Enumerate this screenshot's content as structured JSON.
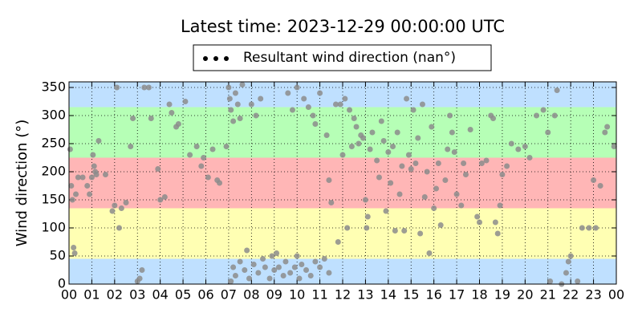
{
  "chart_data": {
    "type": "scatter",
    "title": "Latest time: 2023-12-29 00:00:00 UTC",
    "y_label": "Wind direction (°)",
    "legend_position": "upper center",
    "legend_marker_color": "#000000",
    "grid": true,
    "xlim": [
      0,
      24
    ],
    "ylim": [
      0,
      360
    ],
    "xticks": [
      {
        "value": 0,
        "label": "00"
      },
      {
        "value": 1,
        "label": "01"
      },
      {
        "value": 2,
        "label": "02"
      },
      {
        "value": 3,
        "label": "03"
      },
      {
        "value": 4,
        "label": "04"
      },
      {
        "value": 5,
        "label": "05"
      },
      {
        "value": 6,
        "label": "06"
      },
      {
        "value": 7,
        "label": "07"
      },
      {
        "value": 8,
        "label": "08"
      },
      {
        "value": 9,
        "label": "09"
      },
      {
        "value": 10,
        "label": "10"
      },
      {
        "value": 11,
        "label": "11"
      },
      {
        "value": 12,
        "label": "12"
      },
      {
        "value": 13,
        "label": "13"
      },
      {
        "value": 14,
        "label": "14"
      },
      {
        "value": 15,
        "label": "15"
      },
      {
        "value": 16,
        "label": "16"
      },
      {
        "value": 17,
        "label": "17"
      },
      {
        "value": 18,
        "label": "18"
      },
      {
        "value": 19,
        "label": "19"
      },
      {
        "value": 20,
        "label": "20"
      },
      {
        "value": 21,
        "label": "21"
      },
      {
        "value": 22,
        "label": "22"
      },
      {
        "value": 23,
        "label": "23"
      },
      {
        "value": 24,
        "label": "00"
      }
    ],
    "yticks": [
      0,
      50,
      100,
      150,
      200,
      250,
      300,
      350
    ],
    "bands": [
      {
        "from": 0,
        "to": 45,
        "color": "#bfe0ff"
      },
      {
        "from": 45,
        "to": 135,
        "color": "#ffffb3"
      },
      {
        "from": 135,
        "to": 225,
        "color": "#ffb6b6"
      },
      {
        "from": 225,
        "to": 315,
        "color": "#b6ffb6"
      },
      {
        "from": 315,
        "to": 360,
        "color": "#bfe0ff"
      }
    ],
    "series": [
      {
        "name": "Resultant wind direction (nan°)",
        "color": "#8c8c8c",
        "x": [
          0.05,
          0.1,
          0.15,
          0.2,
          0.25,
          0.3,
          0.4,
          0.6,
          0.8,
          0.9,
          1.0,
          1.05,
          1.1,
          1.15,
          1.2,
          1.3,
          1.6,
          1.9,
          2.0,
          2.1,
          2.2,
          2.3,
          2.5,
          2.7,
          2.8,
          3.0,
          3.1,
          3.2,
          3.3,
          3.5,
          3.6,
          3.9,
          4.0,
          4.2,
          4.4,
          4.5,
          4.7,
          4.8,
          5.1,
          5.3,
          5.6,
          5.8,
          5.9,
          6.1,
          6.3,
          6.5,
          6.6,
          6.9,
          7.0,
          7.05,
          7.1,
          7.2,
          7.3,
          7.4,
          7.5,
          7.6,
          7.1,
          7.2,
          7.3,
          7.5,
          7.7,
          7.8,
          7.9,
          8.1,
          8.3,
          8.5,
          8.6,
          8.8,
          8.9,
          9.0,
          9.1,
          9.2,
          9.4,
          9.5,
          9.7,
          9.9,
          10.0,
          10.1,
          10.2,
          10.4,
          10.6,
          10.8,
          11.0,
          11.2,
          11.4,
          8.0,
          8.4,
          8.2,
          9.6,
          9.8,
          10.0,
          10.3,
          10.5,
          10.7,
          10.8,
          11.0,
          11.3,
          11.4,
          11.5,
          11.7,
          11.8,
          11.9,
          12.0,
          12.1,
          12.2,
          12.3,
          12.4,
          12.5,
          12.6,
          12.7,
          12.8,
          12.9,
          13.0,
          13.05,
          13.1,
          13.2,
          13.3,
          13.5,
          13.6,
          13.7,
          13.8,
          13.9,
          14.0,
          14.1,
          14.2,
          14.3,
          14.4,
          14.5,
          14.6,
          14.7,
          14.8,
          14.9,
          15.0,
          15.1,
          15.2,
          15.3,
          15.4,
          15.5,
          15.6,
          15.7,
          15.8,
          15.9,
          16.0,
          16.1,
          16.2,
          16.3,
          16.5,
          16.6,
          16.7,
          16.8,
          16.9,
          17.0,
          17.2,
          17.3,
          17.4,
          17.6,
          17.9,
          18.0,
          18.1,
          18.3,
          18.5,
          18.6,
          18.7,
          18.8,
          18.9,
          19.0,
          19.2,
          19.4,
          19.7,
          20.0,
          20.2,
          20.5,
          20.8,
          21.0,
          21.1,
          21.3,
          21.4,
          21.6,
          21.8,
          21.9,
          22.0,
          22.3,
          22.5,
          22.8,
          23.0,
          23.1,
          23.3,
          23.5,
          23.6,
          23.9
        ],
        "values": [
          240,
          175,
          150,
          65,
          55,
          160,
          190,
          190,
          175,
          160,
          190,
          230,
          210,
          200,
          195,
          255,
          195,
          130,
          140,
          350,
          100,
          135,
          145,
          245,
          295,
          5,
          10,
          25,
          350,
          350,
          295,
          205,
          150,
          155,
          320,
          305,
          280,
          285,
          325,
          230,
          245,
          210,
          225,
          190,
          240,
          185,
          180,
          245,
          350,
          330,
          310,
          290,
          340,
          320,
          295,
          355,
          5,
          30,
          15,
          40,
          25,
          60,
          10,
          35,
          20,
          45,
          30,
          10,
          50,
          25,
          55,
          30,
          15,
          40,
          20,
          30,
          50,
          10,
          35,
          25,
          15,
          40,
          30,
          45,
          20,
          320,
          330,
          300,
          340,
          310,
          350,
          330,
          315,
          300,
          285,
          340,
          265,
          185,
          145,
          320,
          75,
          320,
          230,
          330,
          100,
          310,
          245,
          295,
          280,
          250,
          265,
          260,
          150,
          100,
          120,
          240,
          270,
          220,
          190,
          290,
          255,
          130,
          235,
          180,
          245,
          95,
          270,
          160,
          210,
          95,
          330,
          230,
          205,
          310,
          215,
          260,
          90,
          320,
          155,
          200,
          55,
          280,
          135,
          170,
          215,
          105,
          185,
          240,
          300,
          270,
          235,
          160,
          140,
          215,
          195,
          275,
          120,
          110,
          215,
          220,
          300,
          295,
          110,
          90,
          140,
          195,
          210,
          250,
          240,
          245,
          225,
          300,
          310,
          270,
          5,
          300,
          345,
          0,
          20,
          40,
          50,
          5,
          100,
          100,
          185,
          100,
          175,
          270,
          280,
          245
        ]
      }
    ]
  }
}
